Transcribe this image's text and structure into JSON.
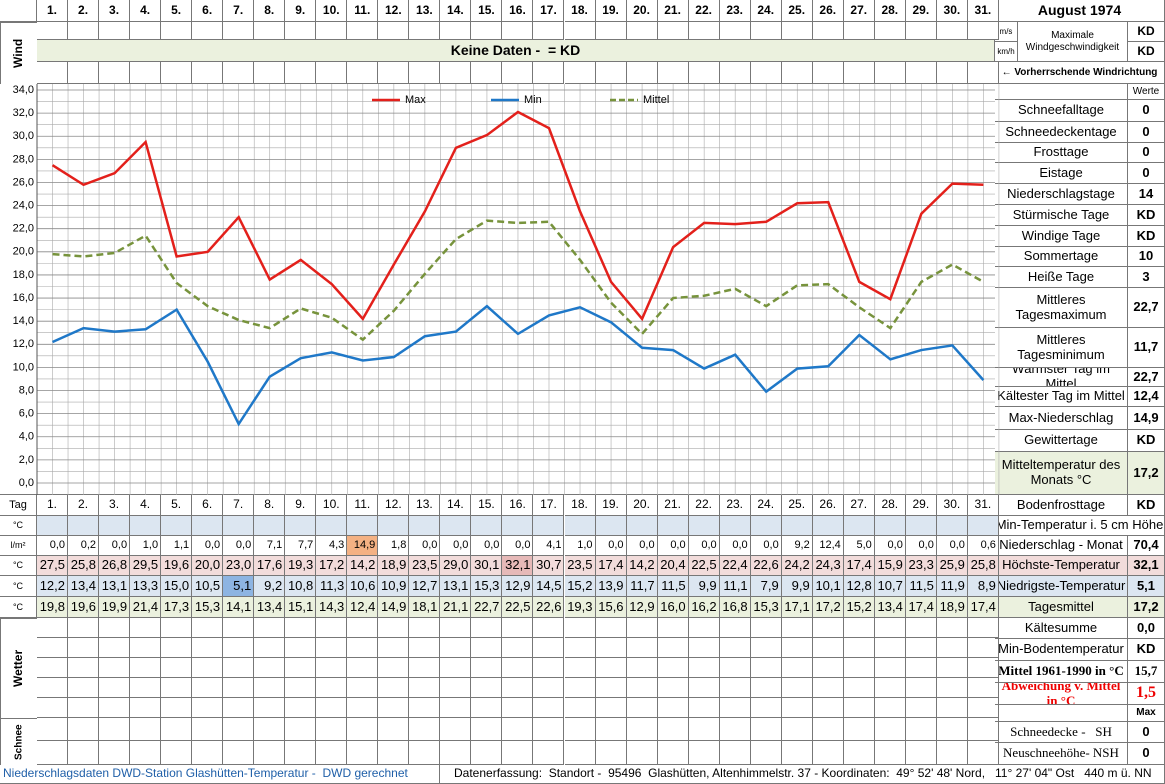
{
  "chart_data": {
    "type": "line",
    "categories": [
      "1.",
      "2.",
      "3.",
      "4.",
      "5.",
      "6.",
      "7.",
      "8.",
      "9.",
      "10.",
      "11.",
      "12.",
      "13.",
      "14.",
      "15.",
      "16.",
      "17.",
      "18.",
      "19.",
      "20.",
      "21.",
      "22.",
      "23.",
      "24.",
      "25.",
      "26.",
      "27.",
      "28.",
      "29.",
      "30.",
      "31."
    ],
    "series": [
      {
        "name": "Max",
        "color": "#e3201b",
        "values": [
          27.5,
          25.8,
          26.8,
          29.5,
          19.6,
          20.0,
          23.0,
          17.6,
          19.3,
          17.2,
          14.2,
          18.9,
          23.5,
          29.0,
          30.1,
          32.1,
          30.7,
          23.5,
          17.4,
          14.2,
          20.4,
          22.5,
          22.4,
          22.6,
          24.2,
          24.3,
          17.4,
          15.9,
          23.3,
          25.9,
          25.8
        ],
        "value_labels": [
          "27,5",
          "25,8",
          "26,8",
          "29,5",
          "19,6",
          "20,0",
          "23,0",
          "17,6",
          "19,3",
          "17,2",
          "14,2",
          "18,9",
          "23,5",
          "29,0",
          "30,1",
          "32,1",
          "30,7",
          "23,5",
          "17,4",
          "14,2",
          "20,4",
          "22,5",
          "22,4",
          "22,6",
          "24,2",
          "24,3",
          "17,4",
          "15,9",
          "23,3",
          "25,9",
          "25,8"
        ]
      },
      {
        "name": "Min",
        "color": "#1f78c8",
        "values": [
          12.2,
          13.4,
          13.1,
          13.3,
          15.0,
          10.5,
          5.1,
          9.2,
          10.8,
          11.3,
          10.6,
          10.9,
          12.7,
          13.1,
          15.3,
          12.9,
          14.5,
          15.2,
          13.9,
          11.7,
          11.5,
          9.9,
          11.1,
          7.9,
          9.9,
          10.1,
          12.8,
          10.7,
          11.5,
          11.9,
          8.9
        ],
        "value_labels": [
          "12,2",
          "13,4",
          "13,1",
          "13,3",
          "15,0",
          "10,5",
          "5,1",
          "9,2",
          "10,8",
          "11,3",
          "10,6",
          "10,9",
          "12,7",
          "13,1",
          "15,3",
          "12,9",
          "14,5",
          "15,2",
          "13,9",
          "11,7",
          "11,5",
          "9,9",
          "11,1",
          "7,9",
          "9,9",
          "10,1",
          "12,8",
          "10,7",
          "11,5",
          "11,9",
          "8,9"
        ]
      },
      {
        "name": "Mittel",
        "color": "#77933c",
        "dashed": true,
        "values": [
          19.8,
          19.6,
          19.9,
          21.4,
          17.3,
          15.3,
          14.1,
          13.4,
          15.1,
          14.3,
          12.4,
          14.9,
          18.1,
          21.1,
          22.7,
          22.5,
          22.6,
          19.3,
          15.6,
          12.9,
          16.0,
          16.2,
          16.8,
          15.3,
          17.1,
          17.2,
          15.2,
          13.4,
          17.4,
          18.9,
          17.4
        ],
        "value_labels": [
          "19,8",
          "19,6",
          "19,9",
          "21,4",
          "17,3",
          "15,3",
          "14,1",
          "13,4",
          "15,1",
          "14,3",
          "12,4",
          "14,9",
          "18,1",
          "21,1",
          "22,7",
          "22,5",
          "22,6",
          "19,3",
          "15,6",
          "12,9",
          "16,0",
          "16,2",
          "16,8",
          "15,3",
          "17,1",
          "17,2",
          "15,2",
          "13,4",
          "17,4",
          "18,9",
          "17,4"
        ]
      }
    ],
    "ylim": [
      0,
      34
    ],
    "yticks": [
      {
        "value": 0,
        "label": "0,0"
      },
      {
        "value": 2,
        "label": "2,0"
      },
      {
        "value": 4,
        "label": "4,0"
      },
      {
        "value": 6,
        "label": "6,0"
      },
      {
        "value": 8,
        "label": "8,0"
      },
      {
        "value": 10,
        "label": "10,0"
      },
      {
        "value": 12,
        "label": "12,0"
      },
      {
        "value": 14,
        "label": "14,0"
      },
      {
        "value": 16,
        "label": "16,0"
      },
      {
        "value": 18,
        "label": "18,0"
      },
      {
        "value": 20,
        "label": "20,0"
      },
      {
        "value": 22,
        "label": "22,0"
      },
      {
        "value": 24,
        "label": "24,0"
      },
      {
        "value": 26,
        "label": "26,0"
      },
      {
        "value": 28,
        "label": "28,0"
      },
      {
        "value": 30,
        "label": "30,0"
      },
      {
        "value": 32,
        "label": "32,0"
      },
      {
        "value": 34,
        "label": "34,0"
      }
    ],
    "grid": true
  },
  "wind": {
    "label": "Wind",
    "banner": "Keine Daten -  = KD"
  },
  "table": {
    "day_label": "Tag",
    "units": [
      "°C",
      "l/m²",
      "°C",
      "°C",
      "°C"
    ],
    "precipitation": [
      "0,0",
      "0,2",
      "0,0",
      "1,0",
      "1,1",
      "0,0",
      "0,0",
      "7,1",
      "7,7",
      "4,3",
      "14,9",
      "1,8",
      "0,0",
      "0,0",
      "0,0",
      "0,0",
      "4,1",
      "1,0",
      "0,0",
      "0,0",
      "0,0",
      "0,0",
      "0,0",
      "0,0",
      "9,2",
      "12,4",
      "5,0",
      "0,0",
      "0,0",
      "0,0",
      "0,6"
    ],
    "weather_label": "Wetter",
    "snow_label": "Schnee"
  },
  "panel": {
    "title": "August 1974",
    "wind_caption": "Maximale Windgeschwindigkeit",
    "wind_rows": [
      {
        "unit": "m/s",
        "value": "KD"
      },
      {
        "unit": "km/h",
        "value": "KD"
      }
    ],
    "wind_direction": "← Vorherrschende Windrichtung",
    "values_header": "Werte",
    "stats": [
      {
        "label": "Schneefalltage",
        "value": "0"
      },
      {
        "label": "Schneedeckentage",
        "value": "0"
      },
      {
        "label": "Frosttage",
        "value": "0"
      },
      {
        "label": "Eistage",
        "value": "0"
      },
      {
        "label": "Niederschlagstage",
        "value": "14"
      },
      {
        "label": "Stürmische Tage",
        "value": "KD"
      },
      {
        "label": "Windige Tage",
        "value": "KD"
      },
      {
        "label": "Sommertage",
        "value": "10"
      },
      {
        "label": "Heiße Tage",
        "value": "3"
      },
      {
        "label": "Mittleres Tagesmaximum",
        "value": "22,7"
      },
      {
        "label": "Mittleres Tagesminimum",
        "value": "11,7"
      },
      {
        "label": "Wärmster Tag im Mittel",
        "value": "22,7"
      },
      {
        "label": "Kältester Tag im Mittel",
        "value": "12,4"
      },
      {
        "label": "Max-Niederschlag",
        "value": "14,9"
      },
      {
        "label": "Gewittertage",
        "value": "KD"
      },
      {
        "label": "Mitteltemperatur des Monats °C",
        "value": "17,2"
      },
      {
        "label": "Bodenfrosttage",
        "value": "KD"
      },
      {
        "label": "Min-Temperatur i. 5 cm Höhe"
      },
      {
        "label": "Niederschlag - Monat",
        "value": "70,4"
      },
      {
        "label": "Höchste-Temperatur",
        "value": "32,1"
      },
      {
        "label": "Niedrigste-Temperatur",
        "value": "5,1"
      },
      {
        "label": "Tagesmittel",
        "value": "17,2"
      },
      {
        "label": "Kältesumme",
        "value": "0,0"
      },
      {
        "label": "Min-Bodentemperatur",
        "value": "KD"
      },
      {
        "label": "Mittel 1961-1990 in °C",
        "value": "15,7"
      },
      {
        "label": "Abweichung v. Mittel in °C",
        "value": "1,5"
      },
      {
        "value": "Max"
      },
      {
        "label": "Schneedecke -   SH",
        "value": "0"
      },
      {
        "label": "Neuschneehöhe- NSH",
        "value": "0"
      }
    ]
  },
  "footer": {
    "left": "Niederschlagsdaten DWD-Station Glashütten-Temperatur -  DWD gerechnet",
    "right": "Datenerfassung:  Standort -  95496  Glashütten, Altenhimmelstr. 37 - Koordinaten:  49° 52' 48' Nord,   11° 27' 04\" Ost   440 m ü. NN"
  }
}
